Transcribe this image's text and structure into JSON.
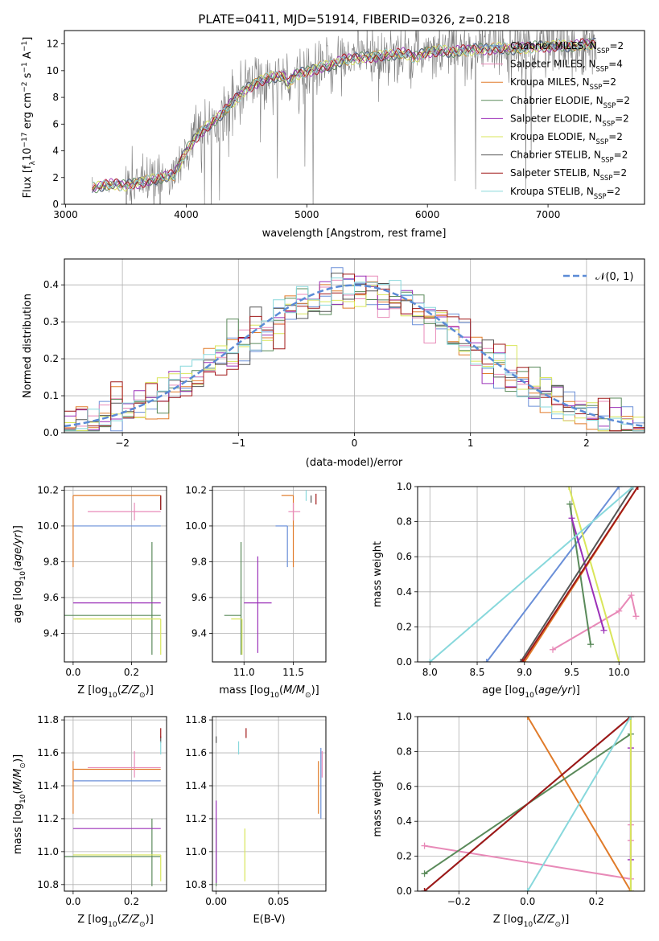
{
  "figure_title": "PLATE=0411, MJD=51914, FIBERID=0326, z=0.218",
  "colors": {
    "Chabrier MILES": "#6a8fd8",
    "Salpeter MILES": "#e88ab8",
    "Kroupa MILES": "#e07b2a",
    "Chabrier ELODIE": "#5a8a5a",
    "Salpeter ELODIE": "#9b30b8",
    "Kroupa ELODIE": "#d9e65a",
    "Chabrier STELIB": "#555555",
    "Salpeter STELIB": "#a01818",
    "Kroupa STELIB": "#88d8dc",
    "observed": "#7a7a7a",
    "normal": "#5b8bd6"
  },
  "chart_data": [
    {
      "id": "spectrum",
      "type": "line",
      "title": "PLATE=0411, MJD=51914, FIBERID=0326, z=0.218",
      "xlabel": "wavelength [Angstrom, rest frame]",
      "ylabel": "Flux [f_λ10^-17 erg cm^-2 s^-1 A^-1]",
      "xlim": [
        2990,
        7800
      ],
      "ylim": [
        0,
        13
      ],
      "xticks": [
        3000,
        4000,
        5000,
        6000,
        7000
      ],
      "yticks": [
        0,
        2,
        4,
        6,
        8,
        10,
        12
      ],
      "legend_position": "upper-right",
      "legend": [
        {
          "name": "Chabrier MILES",
          "nssp": "2"
        },
        {
          "name": "Salpeter MILES",
          "nssp": "4"
        },
        {
          "name": "Kroupa MILES",
          "nssp": "2"
        },
        {
          "name": "Chabrier ELODIE",
          "nssp": "2"
        },
        {
          "name": "Salpeter ELODIE",
          "nssp": "2"
        },
        {
          "name": "Kroupa ELODIE",
          "nssp": "2"
        },
        {
          "name": "Chabrier STELIB",
          "nssp": "2"
        },
        {
          "name": "Salpeter STELIB",
          "nssp": "2"
        },
        {
          "name": "Kroupa STELIB",
          "nssp": "2"
        }
      ],
      "model_x": [
        3220,
        3300,
        3400,
        3500,
        3600,
        3700,
        3800,
        3900,
        4000,
        4100,
        4200,
        4300,
        4400,
        4500,
        4600,
        4700,
        4800,
        4850,
        4900,
        5000,
        5100,
        5200,
        5300,
        5400,
        5500,
        5600,
        5700,
        5800,
        5900,
        6000,
        6100,
        6200,
        6300,
        6400,
        6500,
        6600,
        6700,
        6800,
        6900,
        7000,
        7100,
        7200,
        7300,
        7400
      ],
      "model_y": [
        1.2,
        1.4,
        1.5,
        1.4,
        1.6,
        1.8,
        2.0,
        2.2,
        4.0,
        5.2,
        6.0,
        6.8,
        7.8,
        8.6,
        9.2,
        9.5,
        9.6,
        9.0,
        9.7,
        9.9,
        10.2,
        10.4,
        10.8,
        10.9,
        11.0,
        11.1,
        11.2,
        11.3,
        11.0,
        11.4,
        11.5,
        11.4,
        11.5,
        11.6,
        11.6,
        11.7,
        11.6,
        11.7,
        11.8,
        11.8,
        11.9,
        11.8,
        12.0,
        12.0
      ],
      "observed_x_range": [
        3220,
        7400
      ],
      "observed_noise": 1.8
    },
    {
      "id": "residuals",
      "type": "histogram",
      "xlabel": "(data-model)/error",
      "ylabel": "Normed distribution",
      "xlim": [
        -2.5,
        2.5
      ],
      "ylim": [
        0,
        0.47
      ],
      "xticks": [
        -2,
        -1,
        0,
        1,
        2
      ],
      "yticks": [
        0.0,
        0.1,
        0.2,
        0.3,
        0.4
      ],
      "legend_position": "upper-right",
      "legend": [
        {
          "name": "N(0,1)"
        }
      ],
      "bin_width": 0.1,
      "series_names": [
        "Chabrier MILES",
        "Salpeter MILES",
        "Kroupa MILES",
        "Chabrier ELODIE",
        "Salpeter ELODIE",
        "Kroupa ELODIE",
        "Chabrier STELIB",
        "Salpeter STELIB",
        "Kroupa STELIB"
      ]
    },
    {
      "id": "age-vs-Z",
      "type": "scatter",
      "xlabel": "Z [log10(Z/Zsun)]",
      "ylabel": "age [log10(age/yr)]",
      "xlim": [
        -0.03,
        0.32
      ],
      "ylim": [
        9.24,
        10.22
      ],
      "xticks": [
        0.0,
        0.2
      ],
      "yticks": [
        9.4,
        9.6,
        9.8,
        10.0,
        10.2
      ],
      "points": [
        {
          "series": "Chabrier MILES",
          "x": 0.3,
          "y": 10.0,
          "xerr": [
            0.3,
            0.0
          ],
          "yerr": [
            0.0,
            0.0
          ]
        },
        {
          "series": "Kroupa MILES",
          "x": 0.3,
          "y": 10.17,
          "xerr": [
            0.3,
            0.0
          ],
          "yerr": [
            0.0,
            0.0
          ]
        },
        {
          "series": "Kroupa MILES",
          "x": 0.0,
          "y": 10.17,
          "xerr": [
            0.0,
            0.0
          ],
          "yerr": [
            0.4,
            0.0
          ]
        },
        {
          "series": "Salpeter MILES",
          "x": 0.21,
          "y": 10.08,
          "xerr": [
            0.16,
            0.09
          ],
          "yerr": [
            0.05,
            0.05
          ]
        },
        {
          "series": "Chabrier ELODIE",
          "x": 0.27,
          "y": 9.5,
          "xerr": [
            0.3,
            0.03
          ],
          "yerr": [
            0.22,
            0.41
          ]
        },
        {
          "series": "Salpeter ELODIE",
          "x": 0.3,
          "y": 9.57,
          "xerr": [
            0.3,
            0.0
          ],
          "yerr": [
            0.0,
            0.0
          ]
        },
        {
          "series": "Kroupa ELODIE",
          "x": 0.3,
          "y": 9.48,
          "xerr": [
            0.3,
            0.0
          ],
          "yerr": [
            0.2,
            0.0
          ]
        },
        {
          "series": "Chabrier STELIB",
          "x": 0.3,
          "y": 10.12,
          "xerr": [
            0.0,
            0.0
          ],
          "yerr": [
            0.03,
            0.05
          ]
        },
        {
          "series": "Salpeter STELIB",
          "x": 0.3,
          "y": 10.12,
          "xerr": [
            0.0,
            0.0
          ],
          "yerr": [
            0.03,
            0.05
          ]
        }
      ]
    },
    {
      "id": "age-vs-mass",
      "type": "scatter",
      "xlabel": "mass [log10(M/Msun)]",
      "ylabel": "",
      "xlim": [
        10.68,
        11.83
      ],
      "ylim": [
        9.24,
        10.22
      ],
      "xticks": [
        11.0,
        11.5
      ],
      "yticks": [
        9.4,
        9.6,
        9.8,
        10.0,
        10.2
      ],
      "points": [
        {
          "series": "Chabrier MILES",
          "x": 11.44,
          "y": 10.0,
          "xerr": [
            0.12,
            0.0
          ],
          "yerr": [
            0.23,
            0.0
          ]
        },
        {
          "series": "Kroupa MILES",
          "x": 11.5,
          "y": 10.17,
          "xerr": [
            0.12,
            0.0
          ],
          "yerr": [
            0.0,
            0.0
          ]
        },
        {
          "series": "Kroupa MILES",
          "x": 11.5,
          "y": 10.17,
          "xerr": [
            0.0,
            0.0
          ],
          "yerr": [
            0.4,
            0.0
          ]
        },
        {
          "series": "Salpeter MILES",
          "x": 11.5,
          "y": 10.08,
          "xerr": [
            0.05,
            0.07
          ],
          "yerr": [
            0.05,
            0.05
          ]
        },
        {
          "series": "Chabrier ELODIE",
          "x": 10.97,
          "y": 9.5,
          "xerr": [
            0.17,
            0.0
          ],
          "yerr": [
            0.22,
            0.41
          ]
        },
        {
          "series": "Salpeter ELODIE",
          "x": 11.14,
          "y": 9.57,
          "xerr": [
            0.14,
            0.14
          ],
          "yerr": [
            0.28,
            0.26
          ]
        },
        {
          "series": "Kroupa ELODIE",
          "x": 10.98,
          "y": 9.48,
          "xerr": [
            0.11,
            0.0
          ],
          "yerr": [
            0.2,
            0.0
          ]
        },
        {
          "series": "Chabrier STELIB",
          "x": 11.68,
          "y": 10.15,
          "xerr": [
            0.0,
            0.0
          ],
          "yerr": [
            0.02,
            0.02
          ]
        },
        {
          "series": "Salpeter STELIB",
          "x": 11.73,
          "y": 10.15,
          "xerr": [
            0.0,
            0.0
          ],
          "yerr": [
            0.03,
            0.03
          ]
        },
        {
          "series": "Kroupa STELIB",
          "x": 11.63,
          "y": 10.17,
          "xerr": [
            0.0,
            0.0
          ],
          "yerr": [
            0.03,
            0.03
          ]
        }
      ]
    },
    {
      "id": "massweight-vs-age",
      "type": "line",
      "xlabel": "age [log10(age/yr)]",
      "ylabel": "mass weight",
      "xlim": [
        7.87,
        10.27
      ],
      "ylim": [
        0,
        1
      ],
      "xticks": [
        8.0,
        8.5,
        9.0,
        9.5,
        10.0
      ],
      "yticks": [
        0.0,
        0.2,
        0.4,
        0.6,
        0.8,
        1.0
      ],
      "series": [
        {
          "name": "Chabrier MILES",
          "x": [
            8.6,
            10.0
          ],
          "y": [
            0.0,
            1.0
          ]
        },
        {
          "name": "Salpeter MILES",
          "x": [
            9.3,
            10.0,
            10.13,
            10.18
          ],
          "y": [
            0.07,
            0.29,
            0.38,
            0.26
          ]
        },
        {
          "name": "Kroupa MILES",
          "x": [
            9.0,
            10.2
          ],
          "y": [
            0.0,
            1.0
          ]
        },
        {
          "name": "Chabrier ELODIE",
          "x": [
            9.48,
            9.7
          ],
          "y": [
            0.9,
            0.1
          ]
        },
        {
          "name": "Salpeter ELODIE",
          "x": [
            9.5,
            9.84
          ],
          "y": [
            0.82,
            0.18
          ]
        },
        {
          "name": "Kroupa ELODIE",
          "x": [
            9.47,
            10.0
          ],
          "y": [
            1.0,
            0.0
          ]
        },
        {
          "name": "Chabrier STELIB",
          "x": [
            8.96,
            10.15
          ],
          "y": [
            0.0,
            1.0
          ]
        },
        {
          "name": "Salpeter STELIB",
          "x": [
            8.98,
            10.2
          ],
          "y": [
            0.0,
            1.0
          ]
        },
        {
          "name": "Kroupa STELIB",
          "x": [
            8.0,
            10.15
          ],
          "y": [
            0.0,
            1.0
          ]
        }
      ]
    },
    {
      "id": "mass-vs-Z",
      "type": "scatter",
      "xlabel": "Z [log10(Z/Zsun)]",
      "ylabel": "mass [log10(M/Msun)]",
      "xlim": [
        -0.03,
        0.32
      ],
      "ylim": [
        10.76,
        11.82
      ],
      "xticks": [
        0.0,
        0.2
      ],
      "yticks": [
        10.8,
        11.0,
        11.2,
        11.4,
        11.6,
        11.8
      ],
      "points": [
        {
          "series": "Chabrier MILES",
          "x": 0.3,
          "y": 11.43,
          "xerr": [
            0.3,
            0.0
          ],
          "yerr": [
            0.0,
            0.0
          ]
        },
        {
          "series": "Kroupa MILES",
          "x": 0.3,
          "y": 11.5,
          "xerr": [
            0.3,
            0.0
          ],
          "yerr": [
            0.0,
            0.0
          ]
        },
        {
          "series": "Kroupa MILES",
          "x": 0.0,
          "y": 11.5,
          "xerr": [
            0.0,
            0.0
          ],
          "yerr": [
            0.27,
            0.05
          ]
        },
        {
          "series": "Salpeter MILES",
          "x": 0.21,
          "y": 11.51,
          "xerr": [
            0.16,
            0.09
          ],
          "yerr": [
            0.06,
            0.1
          ]
        },
        {
          "series": "Chabrier ELODIE",
          "x": 0.27,
          "y": 10.97,
          "xerr": [
            0.3,
            0.03
          ],
          "yerr": [
            0.18,
            0.23
          ]
        },
        {
          "series": "Salpeter ELODIE",
          "x": 0.3,
          "y": 11.14,
          "xerr": [
            0.3,
            0.0
          ],
          "yerr": [
            0.0,
            0.0
          ]
        },
        {
          "series": "Kroupa ELODIE",
          "x": 0.3,
          "y": 10.98,
          "xerr": [
            0.3,
            0.0
          ],
          "yerr": [
            0.16,
            0.0
          ]
        },
        {
          "series": "Chabrier STELIB",
          "x": 0.3,
          "y": 11.68,
          "xerr": [
            0.0,
            0.0
          ],
          "yerr": [
            0.02,
            0.02
          ]
        },
        {
          "series": "Salpeter STELIB",
          "x": 0.3,
          "y": 11.72,
          "xerr": [
            0.0,
            0.0
          ],
          "yerr": [
            0.03,
            0.03
          ]
        },
        {
          "series": "Kroupa STELIB",
          "x": 0.3,
          "y": 11.63,
          "xerr": [
            0.0,
            0.0
          ],
          "yerr": [
            0.04,
            0.04
          ]
        }
      ]
    },
    {
      "id": "mass-vs-ebv",
      "type": "scatter",
      "xlabel": "E(B-V)",
      "ylabel": "",
      "xlim": [
        -0.003,
        0.088
      ],
      "ylim": [
        10.76,
        11.82
      ],
      "xticks": [
        0.0,
        0.05
      ],
      "yticks": [
        10.8,
        11.0,
        11.2,
        11.4,
        11.6,
        11.8
      ],
      "points": [
        {
          "series": "Chabrier MILES",
          "x": 0.084,
          "y": 11.43,
          "xerr": [
            0.0,
            0.0
          ],
          "yerr": [
            0.23,
            0.2
          ]
        },
        {
          "series": "Kroupa MILES",
          "x": 0.082,
          "y": 11.5,
          "xerr": [
            0.0,
            0.0
          ],
          "yerr": [
            0.27,
            0.05
          ]
        },
        {
          "series": "Salpeter MILES",
          "x": 0.085,
          "y": 11.51,
          "xerr": [
            0.0,
            0.0
          ],
          "yerr": [
            0.06,
            0.1
          ]
        },
        {
          "series": "Chabrier ELODIE",
          "x": 0.0,
          "y": 10.97,
          "xerr": [
            0.0,
            0.0
          ],
          "yerr": [
            0.18,
            0.23
          ]
        },
        {
          "series": "Salpeter ELODIE",
          "x": 0.0,
          "y": 11.14,
          "xerr": [
            0.0,
            0.0
          ],
          "yerr": [
            0.33,
            0.17
          ]
        },
        {
          "series": "Kroupa ELODIE",
          "x": 0.023,
          "y": 10.98,
          "xerr": [
            0.0,
            0.0
          ],
          "yerr": [
            0.16,
            0.16
          ]
        },
        {
          "series": "Chabrier STELIB",
          "x": 0.0,
          "y": 11.68,
          "xerr": [
            0.0,
            0.0
          ],
          "yerr": [
            0.02,
            0.02
          ]
        },
        {
          "series": "Salpeter STELIB",
          "x": 0.024,
          "y": 11.72,
          "xerr": [
            0.0,
            0.0
          ],
          "yerr": [
            0.03,
            0.03
          ]
        },
        {
          "series": "Kroupa STELIB",
          "x": 0.018,
          "y": 11.63,
          "xerr": [
            0.0,
            0.0
          ],
          "yerr": [
            0.04,
            0.04
          ]
        }
      ]
    },
    {
      "id": "massweight-vs-Z",
      "type": "line",
      "xlabel": "Z [log10(Z/Zsun)]",
      "ylabel": "mass weight",
      "xlim": [
        -0.32,
        0.34
      ],
      "ylim": [
        0,
        1
      ],
      "xticks": [
        -0.2,
        0.0,
        0.2
      ],
      "yticks": [
        0.0,
        0.2,
        0.4,
        0.6,
        0.8,
        1.0
      ],
      "series": [
        {
          "name": "Chabrier MILES",
          "x": [
            0.3,
            0.3
          ],
          "y": [
            0.0,
            1.0
          ]
        },
        {
          "name": "Salpeter MILES",
          "x": [
            -0.3,
            0.3,
            0.3,
            0.3
          ],
          "y": [
            0.26,
            0.07,
            0.29,
            0.38
          ]
        },
        {
          "name": "Kroupa MILES",
          "x": [
            0.0,
            0.3
          ],
          "y": [
            1.0,
            0.0
          ]
        },
        {
          "name": "Chabrier ELODIE",
          "x": [
            -0.3,
            0.3
          ],
          "y": [
            0.1,
            0.9
          ]
        },
        {
          "name": "Salpeter ELODIE",
          "x": [
            0.3,
            0.3
          ],
          "y": [
            0.18,
            0.82
          ]
        },
        {
          "name": "Kroupa ELODIE",
          "x": [
            0.3,
            0.3
          ],
          "y": [
            0.0,
            1.0
          ]
        },
        {
          "name": "Chabrier STELIB",
          "x": [
            -0.3,
            0.3
          ],
          "y": [
            0.0,
            1.0
          ]
        },
        {
          "name": "Salpeter STELIB",
          "x": [
            -0.3,
            0.3
          ],
          "y": [
            0.0,
            1.0
          ]
        },
        {
          "name": "Kroupa STELIB",
          "x": [
            0.0,
            0.3
          ],
          "y": [
            0.0,
            1.0
          ]
        }
      ]
    }
  ]
}
